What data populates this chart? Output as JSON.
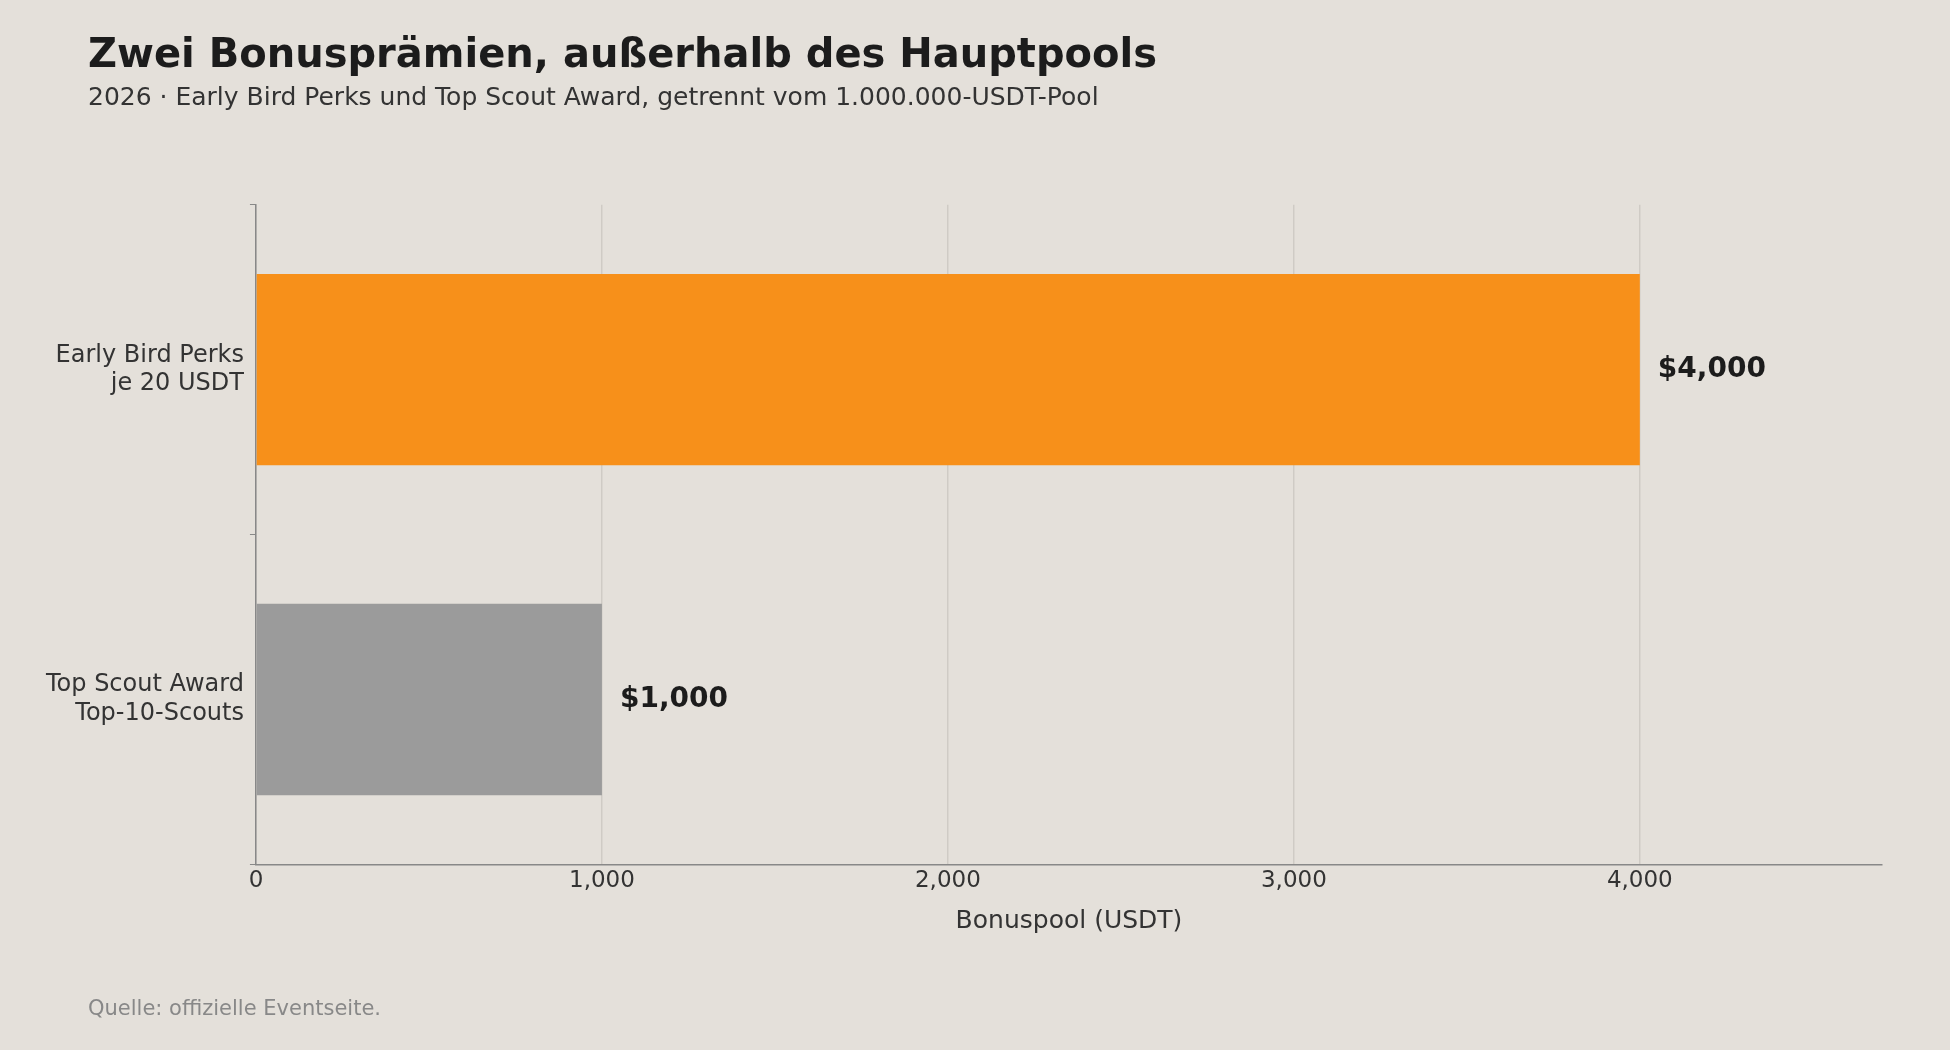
{
  "chart_data": {
    "type": "bar",
    "orientation": "horizontal",
    "title": "Zwei Bonusprämien, außerhalb des Hauptpools",
    "subtitle": "2026 · Early Bird Perks und Top Scout Award, getrennt vom 1.000.000-USDT-Pool",
    "xlabel": "Bonuspool (USDT)",
    "categories": [
      "Early Bird Perks\nje 20 USDT",
      "Top Scout Award\nTop-10-Scouts"
    ],
    "values": [
      4000,
      1000
    ],
    "colors": [
      "#f7901a",
      "#9b9b9b"
    ],
    "value_labels": [
      "$4,000",
      "$1,000"
    ],
    "xlim": [
      0,
      4700
    ],
    "xticks": [
      {
        "value": 0,
        "label": "0"
      },
      {
        "value": 1000,
        "label": "1,000"
      },
      {
        "value": 2000,
        "label": "2,000"
      },
      {
        "value": 3000,
        "label": "3,000"
      },
      {
        "value": 4000,
        "label": "4,000"
      }
    ],
    "grid": "x",
    "legend": false,
    "annotations": [
      "Quelle: offizielle Eventseite."
    ]
  }
}
